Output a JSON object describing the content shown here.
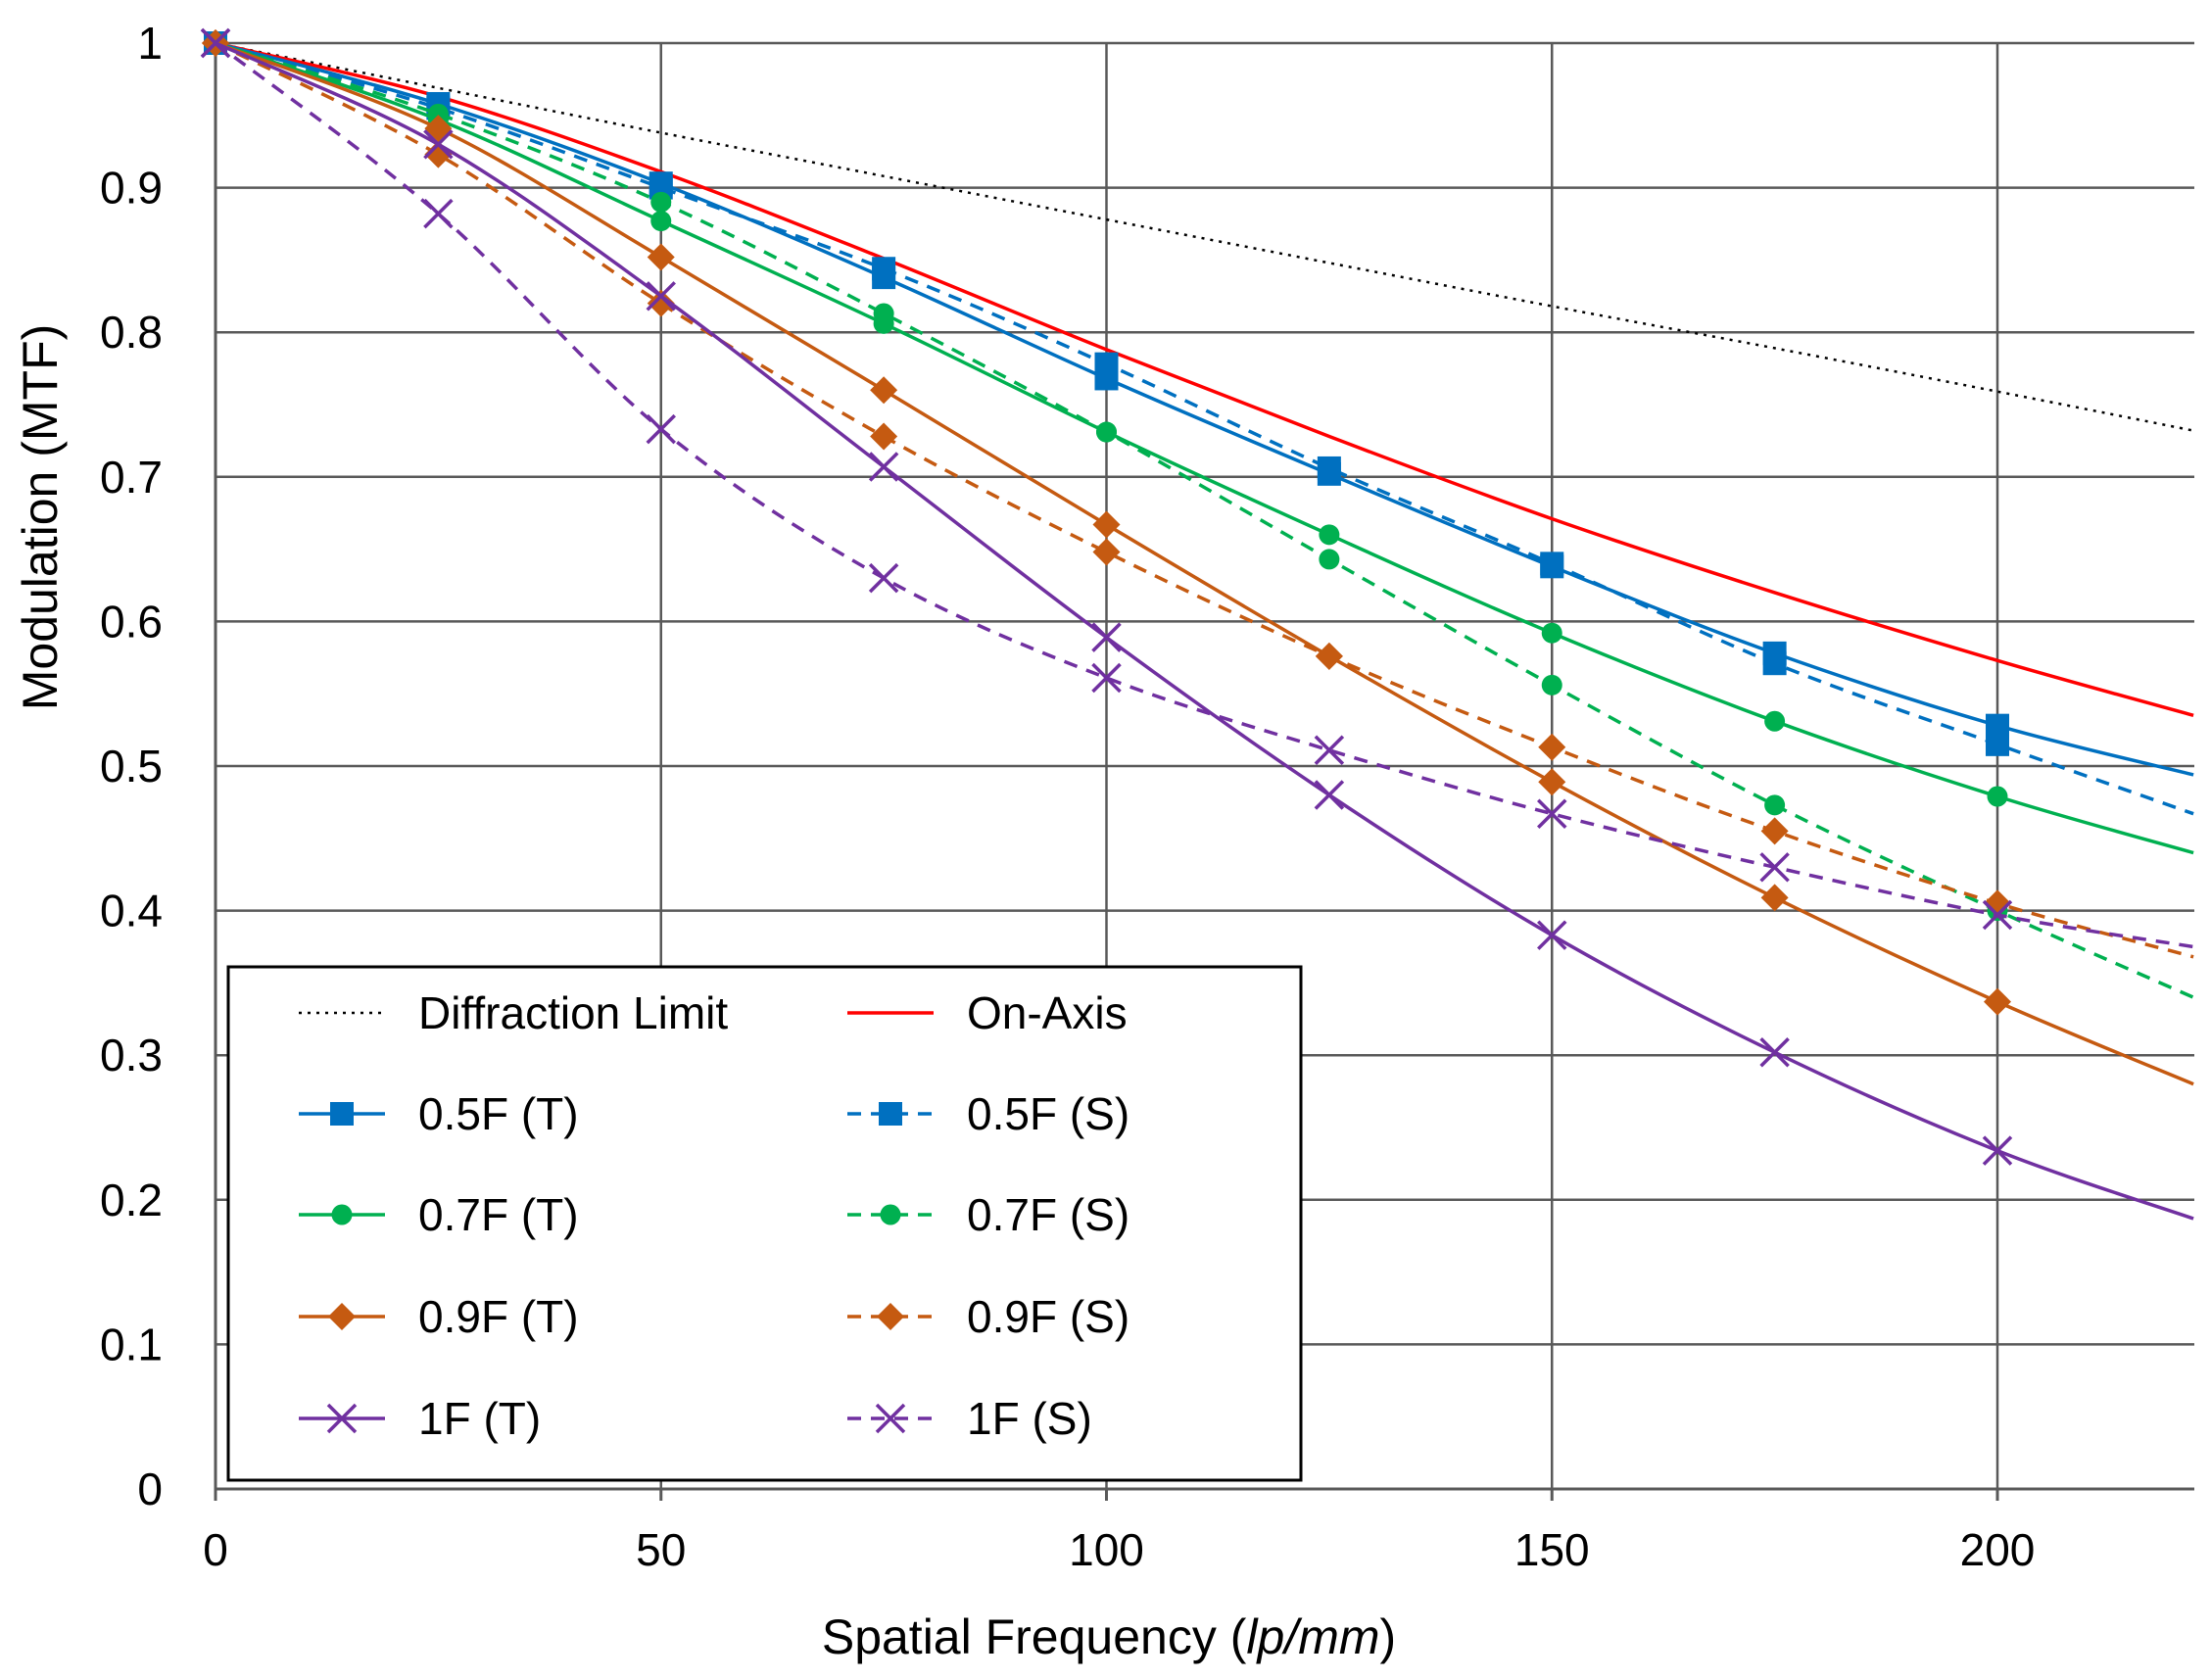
{
  "chart_data": {
    "type": "line",
    "xlabel_main": "Spatial Frequency (",
    "xlabel_italic": "lp/mm",
    "xlabel_end": ")",
    "ylabel": "Modulation (MTF)",
    "xlim": [
      0,
      222
    ],
    "ylim": [
      0,
      1
    ],
    "xticks": [
      0,
      50,
      100,
      150,
      200
    ],
    "xtick_labels": [
      "0",
      "50",
      "100",
      "150",
      "200"
    ],
    "yticks": [
      0,
      0.1,
      0.2,
      0.3,
      0.4,
      0.5,
      0.6,
      0.7,
      0.8,
      0.9,
      1
    ],
    "ytick_labels": [
      "0",
      "0.1",
      "0.2",
      "0.3",
      "0.4",
      "0.5",
      "0.6",
      "0.7",
      "0.8",
      "0.9",
      "1"
    ],
    "grid": true,
    "legend_position": "bottom-left",
    "series": [
      {
        "name": "Diffraction Limit",
        "color": "#000000",
        "dash": "dotted",
        "marker": "none",
        "x": [
          0,
          25,
          50,
          75,
          100,
          125,
          150,
          175,
          200,
          222
        ],
        "y": [
          1.0,
          0.969,
          0.938,
          0.908,
          0.878,
          0.848,
          0.818,
          0.789,
          0.759,
          0.732
        ]
      },
      {
        "name": "On-Axis",
        "color": "#ff0000",
        "dash": "solid",
        "marker": "none",
        "x": [
          0,
          25,
          50,
          75,
          100,
          125,
          150,
          175,
          200,
          222
        ],
        "y": [
          1.0,
          0.963,
          0.911,
          0.851,
          0.788,
          0.728,
          0.671,
          0.62,
          0.573,
          0.535
        ]
      },
      {
        "name": "0.5F (T)",
        "color": "#0070c0",
        "dash": "solid",
        "marker": "square",
        "x": [
          0,
          25,
          50,
          75,
          100,
          125,
          150,
          175,
          200,
          222
        ],
        "y": [
          1.0,
          0.958,
          0.903,
          0.838,
          0.768,
          0.702,
          0.638,
          0.578,
          0.528,
          0.494
        ]
      },
      {
        "name": "0.5F (S)",
        "color": "#0070c0",
        "dash": "dashed",
        "marker": "square",
        "x": [
          0,
          25,
          50,
          75,
          100,
          125,
          150,
          175,
          200,
          222
        ],
        "y": [
          1.0,
          0.955,
          0.9,
          0.844,
          0.778,
          0.706,
          0.64,
          0.571,
          0.515,
          0.467
        ]
      },
      {
        "name": "0.7F (T)",
        "color": "#00b050",
        "dash": "solid",
        "marker": "circle",
        "x": [
          0,
          25,
          50,
          75,
          100,
          125,
          150,
          175,
          200,
          222
        ],
        "y": [
          1.0,
          0.947,
          0.877,
          0.806,
          0.731,
          0.66,
          0.592,
          0.531,
          0.479,
          0.44
        ]
      },
      {
        "name": "0.7F (S)",
        "color": "#00b050",
        "dash": "dashed",
        "marker": "circle",
        "x": [
          0,
          25,
          50,
          75,
          100,
          125,
          150,
          175,
          200,
          222
        ],
        "y": [
          1.0,
          0.951,
          0.89,
          0.813,
          0.731,
          0.643,
          0.556,
          0.473,
          0.4,
          0.34
        ]
      },
      {
        "name": "0.9F (T)",
        "color": "#c55a11",
        "dash": "solid",
        "marker": "diamond",
        "x": [
          0,
          25,
          50,
          75,
          100,
          125,
          150,
          175,
          200,
          222
        ],
        "y": [
          1.0,
          0.941,
          0.852,
          0.76,
          0.667,
          0.576,
          0.489,
          0.409,
          0.337,
          0.28
        ]
      },
      {
        "name": "0.9F (S)",
        "color": "#c55a11",
        "dash": "dashed",
        "marker": "diamond",
        "x": [
          0,
          25,
          50,
          75,
          100,
          125,
          150,
          175,
          200,
          222
        ],
        "y": [
          1.0,
          0.923,
          0.82,
          0.728,
          0.648,
          0.576,
          0.513,
          0.455,
          0.405,
          0.368
        ]
      },
      {
        "name": "1F (T)",
        "color": "#7030a0",
        "dash": "solid",
        "marker": "x",
        "x": [
          0,
          25,
          50,
          75,
          100,
          125,
          150,
          175,
          200,
          222
        ],
        "y": [
          1.0,
          0.93,
          0.825,
          0.707,
          0.589,
          0.48,
          0.383,
          0.302,
          0.234,
          0.187
        ]
      },
      {
        "name": "1F (S)",
        "color": "#7030a0",
        "dash": "dashed",
        "marker": "x",
        "x": [
          0,
          25,
          50,
          75,
          100,
          125,
          150,
          175,
          200,
          222
        ],
        "y": [
          1.0,
          0.882,
          0.733,
          0.63,
          0.561,
          0.511,
          0.467,
          0.43,
          0.397,
          0.375
        ]
      }
    ]
  }
}
